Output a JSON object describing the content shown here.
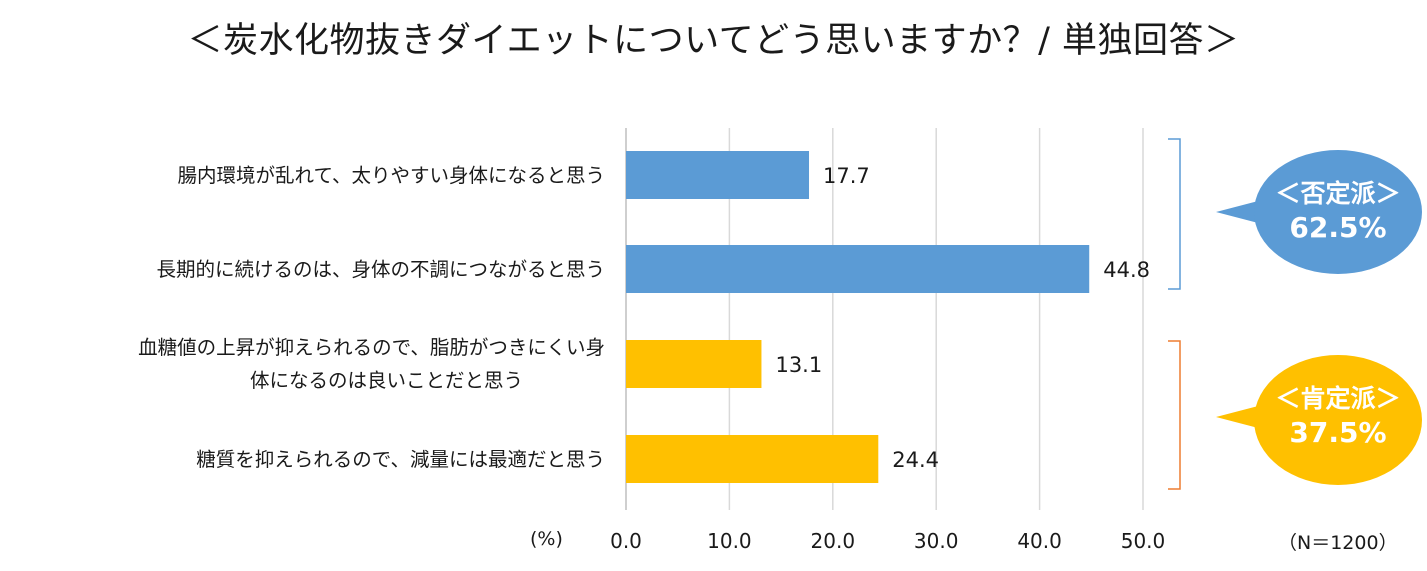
{
  "title": "＜炭水化物抜きダイエットについてどう思いますか？/ 単独回答＞",
  "unit_label": "(%)",
  "n_label": "（N＝1200）",
  "colors": {
    "negative": "#5b9bd5",
    "positive": "#ffc000",
    "grid": "#d9d9d9",
    "bracket_negative": "#5b9bd5",
    "bracket_positive": "#ed7d31"
  },
  "groups": [
    {
      "label": "＜否定派＞",
      "value": "62.5%",
      "color": "#5b9bd5"
    },
    {
      "label": "＜肯定派＞",
      "value": "37.5%",
      "color": "#ffc000"
    }
  ],
  "chart_data": {
    "type": "bar",
    "orientation": "horizontal",
    "title": "＜炭水化物抜きダイエットについてどう思いますか？/ 単独回答＞",
    "categories": [
      [
        "腸内環境が乱れて、太りやすい身体になると思う"
      ],
      [
        "長期的に続けるのは、身体の不調につながると思う"
      ],
      [
        "血糖値の上昇が抑えられるので、脂肪がつきにくい身",
        "体になるのは良いことだと思う"
      ],
      [
        "糖質を抑えられるので、減量には最適だと思う"
      ]
    ],
    "values": [
      17.7,
      44.8,
      13.1,
      24.4
    ],
    "value_labels": [
      "17.7",
      "44.8",
      "13.1",
      "24.4"
    ],
    "bar_colors": [
      "#5b9bd5",
      "#5b9bd5",
      "#ffc000",
      "#ffc000"
    ],
    "xlim": [
      0,
      50
    ],
    "xticks": [
      "0.0",
      "10.0",
      "20.0",
      "30.0",
      "40.0",
      "50.0"
    ],
    "xlabel": "(%)",
    "ylabel": "",
    "grid": true
  }
}
